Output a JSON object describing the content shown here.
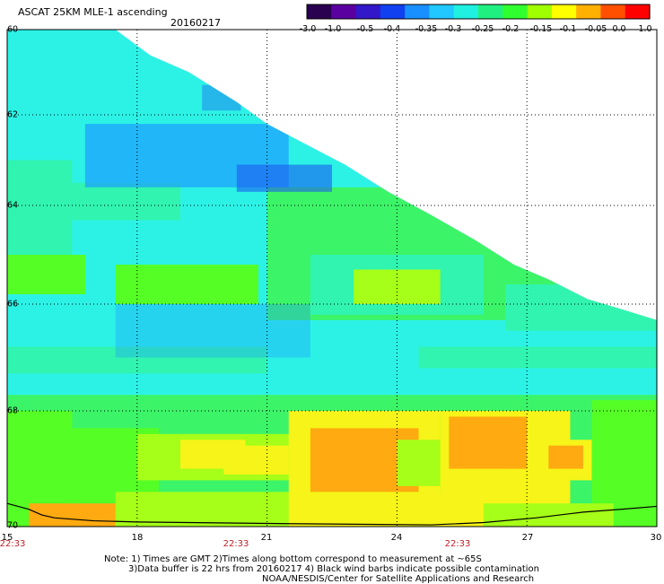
{
  "title": "ASCAT 25KM MLE-1 ascending",
  "date": "20160217",
  "colorbar": {
    "ticks": [
      "-3.0",
      "-1.0",
      "-0.5",
      "-0.4",
      "-0.35",
      "-0.3",
      "-0.25",
      "-0.2",
      "-0.15",
      "-0.1",
      "-0.05",
      "0.0",
      "1.0"
    ],
    "colors": [
      "#2a0050",
      "#5a00a0",
      "#3218c8",
      "#1040f0",
      "#1890ff",
      "#20c8ff",
      "#20f0e0",
      "#20f080",
      "#30ff30",
      "#a0ff00",
      "#ffff00",
      "#ffb000",
      "#ff5000",
      "#ff0000"
    ]
  },
  "map": {
    "lat_labels": [
      "60",
      "62",
      "64",
      "66",
      "68",
      "70"
    ],
    "lon_labels": [
      "15",
      "18",
      "21",
      "24",
      "27",
      "30"
    ],
    "time_labels": [
      "22:33",
      "22:33",
      "22:33"
    ],
    "colors": {
      "cyan": "#2cf2e6",
      "aqua_green": "#30f4b0",
      "green": "#3cf468",
      "bright_green": "#55ff25",
      "lime": "#a6ff18",
      "yellow": "#f6f418",
      "orange": "#ffaa10",
      "blue": "#1c9cff",
      "deep_blue": "#1c5cf0",
      "grid": "#000000",
      "coast": "#000000"
    }
  },
  "notes": [
    "Note: 1) Times are GMT 2)Times along bottom correspond to measurement at ~65S",
    "3)Data buffer is 22 hrs from 20160217 4) Black wind barbs indicate possible contamination",
    "NOAA/NESDIS/Center for Satellite Applications and Research"
  ]
}
